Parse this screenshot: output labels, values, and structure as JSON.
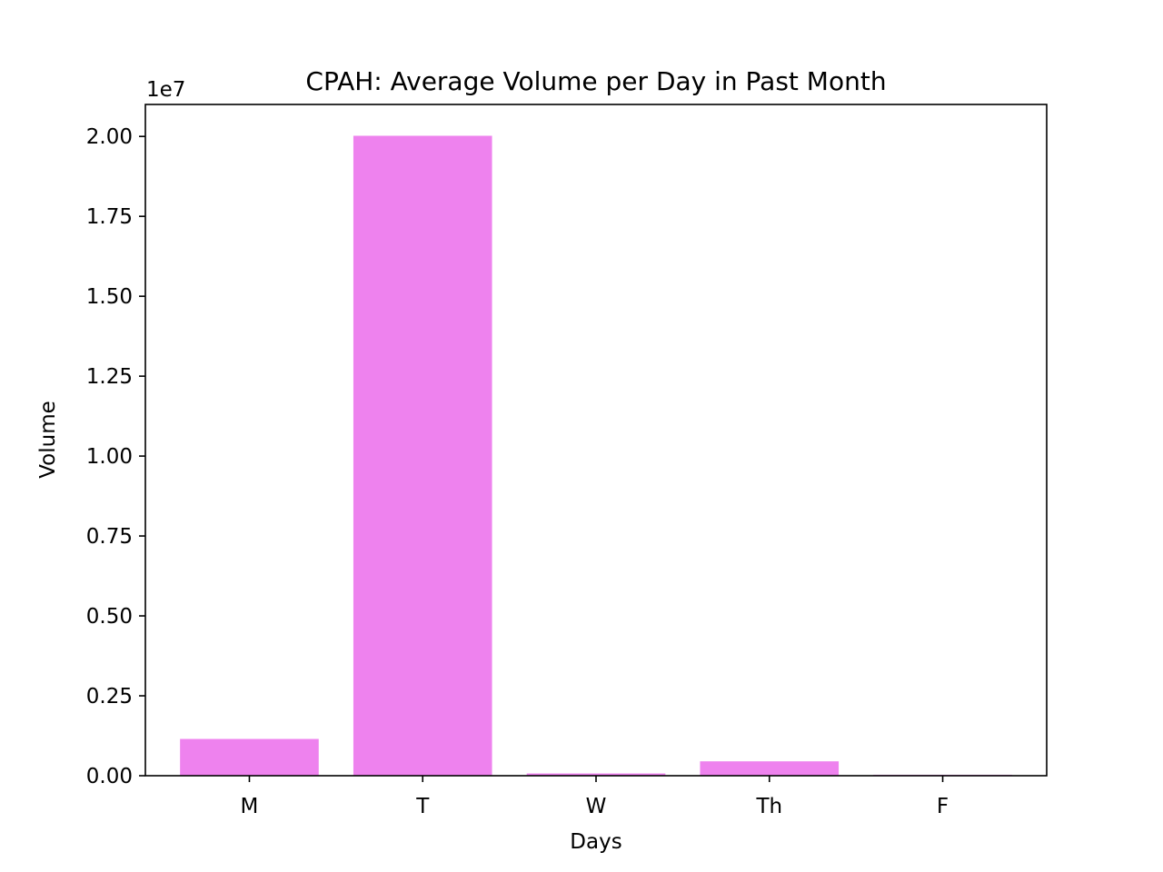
{
  "chart_data": {
    "type": "bar",
    "title": "CPAH: Average Volume per Day in Past Month",
    "xlabel": "Days",
    "ylabel": "Volume",
    "categories": [
      "M",
      "T",
      "W",
      "Th",
      "F"
    ],
    "values": [
      1150000,
      20020000,
      70000,
      450000,
      30000
    ],
    "ylim": [
      0,
      21000000
    ],
    "y_ticks": [
      0,
      2500000,
      5000000,
      7500000,
      10000000,
      12500000,
      15000000,
      17500000,
      20000000
    ],
    "y_tick_labels": [
      "0.00",
      "0.25",
      "0.50",
      "0.75",
      "1.00",
      "1.25",
      "1.50",
      "1.75",
      "2.00"
    ],
    "y_offset_label": "1e7",
    "bar_color": "#ee82ee",
    "grid": false,
    "legend": "none"
  }
}
